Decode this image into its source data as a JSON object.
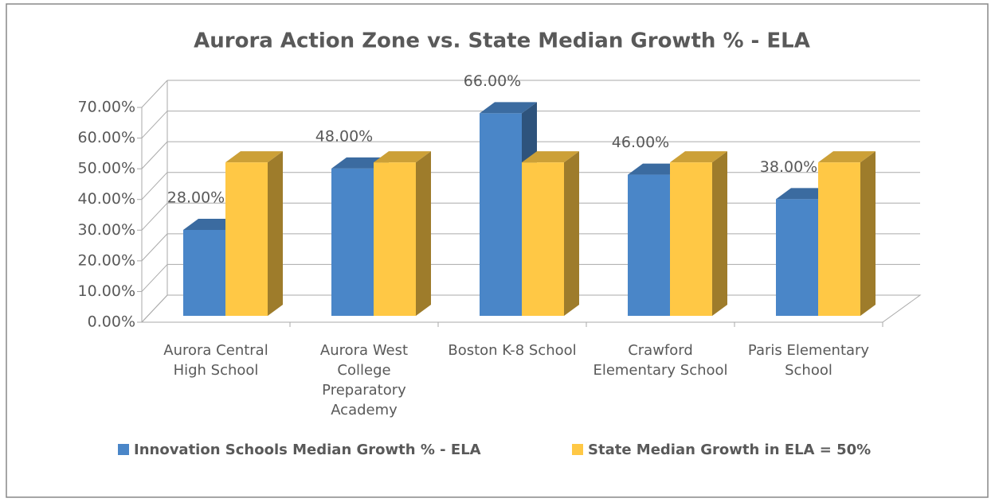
{
  "chart_data": {
    "type": "bar3d",
    "title": "Aurora Action Zone vs. State Median Growth % - ELA",
    "categories": [
      "Aurora Central High School",
      "Aurora West College Preparatory Academy",
      "Boston K-8 School",
      "Crawford Elementary School",
      "Paris Elementary School"
    ],
    "series": [
      {
        "name": "Innovation Schools Median Growth % - ELA",
        "color": "#4a86c8",
        "values": [
          28,
          48,
          66,
          46,
          38
        ],
        "value_labels": [
          "28.00%",
          "48.00%",
          "66.00%",
          "46.00%",
          "38.00%"
        ]
      },
      {
        "name": "State Median Growth in ELA = 50%",
        "color": "#ffc845",
        "values": [
          50,
          50,
          50,
          50,
          50
        ]
      }
    ],
    "ylim": [
      0,
      70
    ],
    "yticks": [
      {
        "value": 0,
        "label": "0.00%"
      },
      {
        "value": 10,
        "label": "10.00%"
      },
      {
        "value": 20,
        "label": "20.00%"
      },
      {
        "value": 30,
        "label": "30.00%"
      },
      {
        "value": 40,
        "label": "40.00%"
      },
      {
        "value": 50,
        "label": "50.00%"
      },
      {
        "value": 60,
        "label": "60.00%"
      },
      {
        "value": 70,
        "label": "70.00%"
      }
    ],
    "grid": true,
    "legend": "bottom"
  }
}
